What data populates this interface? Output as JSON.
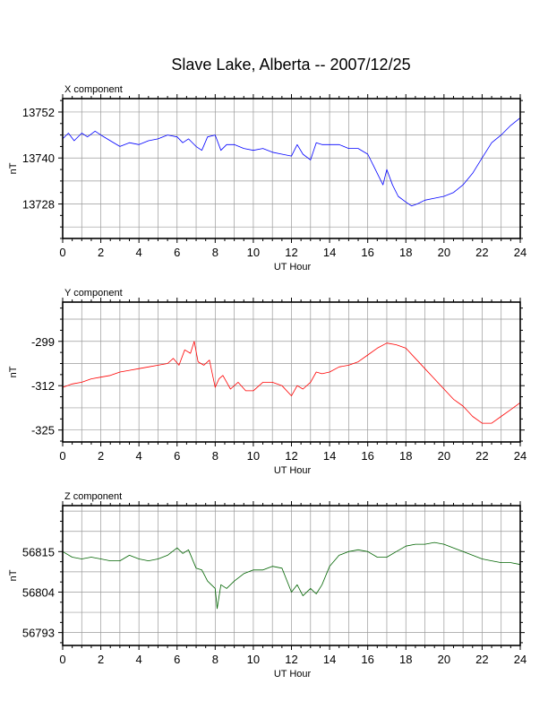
{
  "title": "Slave Lake, Alberta -- 2007/12/25",
  "chart_data": [
    {
      "type": "line",
      "panel_label": "X component",
      "xlabel": "UT Hour",
      "ylabel": "nT",
      "xlim": [
        0,
        24
      ],
      "ylim": [
        13719,
        13755.5
      ],
      "xticks": [
        0,
        2,
        4,
        6,
        8,
        10,
        12,
        14,
        16,
        18,
        20,
        22,
        24
      ],
      "xtick_labels": [
        "0",
        "2",
        "4",
        "6",
        "8",
        "10",
        "12",
        "14",
        "16",
        "18",
        "20",
        "22",
        "24"
      ],
      "yticks": [
        13728,
        13740,
        13752
      ],
      "ytick_labels": [
        "13728",
        "13740",
        "13752"
      ],
      "grid": true,
      "color": "#0000ff",
      "series": [
        {
          "x": [
            0,
            0.3,
            0.6,
            1,
            1.3,
            1.7,
            2,
            2.5,
            3,
            3.5,
            4,
            4.5,
            5,
            5.5,
            6,
            6.3,
            6.6,
            7,
            7.3,
            7.6,
            8,
            8.3,
            8.6,
            9,
            9.5,
            10,
            10.5,
            11,
            11.5,
            12,
            12.3,
            12.6,
            13,
            13.3,
            13.6,
            14,
            14.5,
            15,
            15.5,
            16,
            16.3,
            16.6,
            16.8,
            17,
            17.3,
            17.6,
            18,
            18.3,
            18.6,
            19,
            19.5,
            20,
            20.5,
            21,
            21.5,
            22,
            22.5,
            23,
            23.5,
            24
          ],
          "y": [
            13745,
            13746.5,
            13744.5,
            13746.5,
            13745.5,
            13747,
            13746,
            13744.5,
            13743,
            13744,
            13743.5,
            13744.5,
            13745,
            13746,
            13745.5,
            13744,
            13745,
            13743,
            13742,
            13745.5,
            13746,
            13742,
            13743.5,
            13743.5,
            13742.5,
            13742,
            13742.5,
            13741.5,
            13741,
            13740.5,
            13743.5,
            13741,
            13739.5,
            13744,
            13743.5,
            13743.5,
            13743.5,
            13742.5,
            13742.5,
            13741,
            13738,
            13735,
            13733,
            13737,
            13733,
            13730,
            13728.5,
            13727.5,
            13728,
            13729,
            13729.5,
            13730,
            13731,
            13733,
            13736,
            13740,
            13744,
            13746,
            13748.5,
            13750.5
          ]
        }
      ]
    },
    {
      "type": "line",
      "panel_label": "Y component",
      "xlabel": "UT Hour",
      "ylabel": "nT",
      "xlim": [
        0,
        24
      ],
      "ylim": [
        -328.5,
        -287.5
      ],
      "xticks": [
        0,
        2,
        4,
        6,
        8,
        10,
        12,
        14,
        16,
        18,
        20,
        22,
        24
      ],
      "xtick_labels": [
        "0",
        "2",
        "4",
        "6",
        "8",
        "10",
        "12",
        "14",
        "16",
        "18",
        "20",
        "22",
        "24"
      ],
      "yticks": [
        -325,
        -312,
        -299
      ],
      "ytick_labels": [
        "-325",
        "-312",
        "-299"
      ],
      "grid": true,
      "color": "#ff0000",
      "series": [
        {
          "x": [
            0,
            0.5,
            1,
            1.5,
            2,
            2.5,
            3,
            3.5,
            4,
            4.5,
            5,
            5.5,
            5.8,
            6.1,
            6.4,
            6.7,
            6.9,
            7.1,
            7.4,
            7.7,
            8,
            8.2,
            8.4,
            8.8,
            9.2,
            9.6,
            10,
            10.5,
            11,
            11.5,
            12,
            12.3,
            12.6,
            13,
            13.3,
            13.6,
            14,
            14.5,
            15,
            15.5,
            16,
            16.5,
            17,
            17.5,
            18,
            18.5,
            19,
            19.5,
            20,
            20.5,
            21,
            21.5,
            22,
            22.5,
            23,
            23.5,
            24
          ],
          "y": [
            -312.5,
            -311.5,
            -311,
            -310,
            -309.5,
            -309,
            -308,
            -307.5,
            -307,
            -306.5,
            -306,
            -305.5,
            -304,
            -306,
            -301.5,
            -302.5,
            -299,
            -305,
            -306,
            -304.5,
            -312.5,
            -310,
            -309,
            -313,
            -311,
            -313.5,
            -313.5,
            -311,
            -311,
            -312,
            -315,
            -312,
            -313,
            -311,
            -308,
            -308.5,
            -308,
            -306.5,
            -306,
            -305,
            -303,
            -301,
            -299.5,
            -300,
            -301,
            -304,
            -307,
            -310,
            -313,
            -316,
            -318,
            -321,
            -323,
            -323,
            -321,
            -319,
            -317
          ]
        }
      ]
    },
    {
      "type": "line",
      "panel_label": "Z component",
      "xlabel": "UT Hour",
      "ylabel": "nT",
      "xlim": [
        0,
        24
      ],
      "ylim": [
        56789.5,
        56827.5
      ],
      "xticks": [
        0,
        2,
        4,
        6,
        8,
        10,
        12,
        14,
        16,
        18,
        20,
        22,
        24
      ],
      "xtick_labels": [
        "0",
        "2",
        "4",
        "6",
        "8",
        "10",
        "12",
        "14",
        "16",
        "18",
        "20",
        "22",
        "24"
      ],
      "yticks": [
        56793,
        56804,
        56815
      ],
      "ytick_labels": [
        "56793",
        "56804",
        "56815"
      ],
      "grid": true,
      "color": "#006400",
      "series": [
        {
          "x": [
            0,
            0.5,
            1,
            1.5,
            2,
            2.5,
            3,
            3.5,
            4,
            4.5,
            5,
            5.5,
            6,
            6.3,
            6.6,
            7,
            7.3,
            7.6,
            8,
            8.1,
            8.3,
            8.6,
            9,
            9.5,
            10,
            10.5,
            11,
            11.5,
            12,
            12.3,
            12.6,
            13,
            13.3,
            13.6,
            14,
            14.5,
            15,
            15.5,
            16,
            16.5,
            17,
            17.5,
            18,
            18.5,
            19,
            19.5,
            20,
            20.5,
            21,
            21.5,
            22,
            22.5,
            23,
            23.5,
            24
          ],
          "y": [
            56815,
            56813.5,
            56813,
            56813.5,
            56813,
            56812.5,
            56812.5,
            56814,
            56813,
            56812.5,
            56813,
            56814,
            56816,
            56814.5,
            56815.5,
            56810.5,
            56810,
            56807,
            56805,
            56799.5,
            56806,
            56805,
            56807,
            56809,
            56810,
            56810,
            56811,
            56810.5,
            56804,
            56806,
            56803,
            56805,
            56803.5,
            56806,
            56811,
            56814,
            56815,
            56815.5,
            56815,
            56813.5,
            56813.5,
            56815,
            56816.5,
            56817,
            56817,
            56817.5,
            56817,
            56816,
            56815,
            56814,
            56813,
            56812.5,
            56812,
            56812,
            56811.5
          ]
        }
      ]
    }
  ]
}
